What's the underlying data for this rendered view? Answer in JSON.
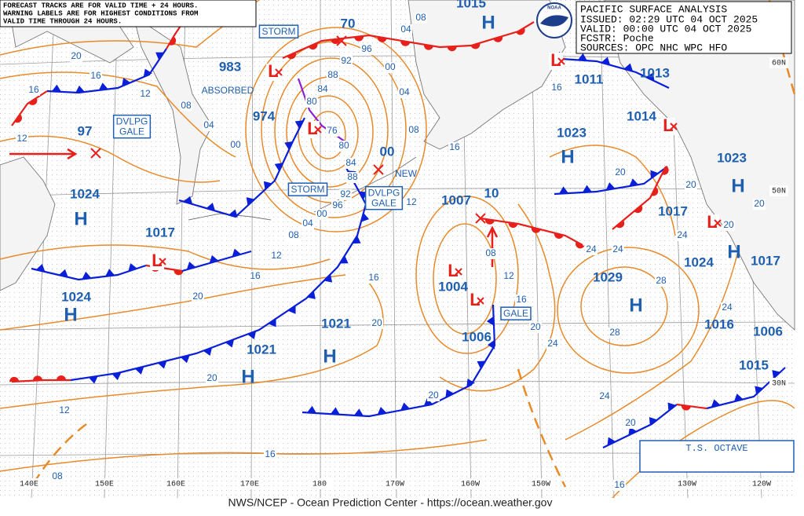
{
  "notice": [
    "FORECAST TRACKS ARE FOR VALID TIME + 24 HOURS.",
    "WARNING LABELS ARE FOR HIGHEST CONDITIONS FROM",
    "VALID TIME THROUGH 24 HOURS."
  ],
  "header": {
    "title": "PACIFIC SURFACE ANALYSIS",
    "issued": "ISSUED: 02:29 UTC 04 OCT 2025",
    "valid": "VALID:  00:00 UTC 04 OCT 2025",
    "forecaster": "FCSTR:  Poche",
    "sources": "SOURCES: OPC NHC WPC HFO",
    "logo": "NOAA"
  },
  "footer": "NWS/NCEP - Ocean Prediction Center - https://ocean.weather.gov",
  "longitude_labels": [
    "140E",
    "150E",
    "160E",
    "170E",
    "180",
    "170W",
    "160W",
    "150W",
    "130W",
    "120W"
  ],
  "latitude_labels": [
    "60N",
    "50N",
    "30N"
  ],
  "highs": [
    {
      "symbol": "H",
      "pressure": "1024"
    },
    {
      "symbol": "H",
      "pressure": "1024"
    },
    {
      "symbol": "H",
      "pressure": "1021"
    },
    {
      "symbol": "H",
      "pressure": "1021"
    },
    {
      "symbol": "H",
      "pressure": "1023"
    },
    {
      "symbol": "H",
      "pressure": "1029"
    },
    {
      "symbol": "H",
      "pressure": "1024"
    },
    {
      "symbol": "H",
      "pressure": "1023"
    },
    {
      "symbol": "H",
      "pressure": "1015"
    }
  ],
  "lows": [
    {
      "symbol": "L",
      "pressure": "983"
    },
    {
      "symbol": "L",
      "pressure": "974"
    },
    {
      "symbol": "L",
      "pressure": "1007"
    },
    {
      "symbol": "L",
      "pressure": "1004"
    },
    {
      "symbol": "L",
      "pressure": "1017"
    },
    {
      "symbol": "L",
      "pressure": "1011"
    },
    {
      "symbol": "L",
      "pressure": "1014"
    },
    {
      "symbol": "L",
      "pressure": "1017"
    }
  ],
  "pressure_labels": [
    "1006",
    "1013",
    "1017",
    "1016",
    "1015",
    "1006",
    "97",
    "70",
    "00",
    "10"
  ],
  "warnings": [
    {
      "lines": [
        "STORM"
      ]
    },
    {
      "lines": [
        "DVLPG",
        "GALE"
      ]
    },
    {
      "lines": [
        "STORM"
      ]
    },
    {
      "lines": [
        "DVLPG",
        "GALE"
      ]
    },
    {
      "lines": [
        "GALE"
      ]
    }
  ],
  "notes": [
    "ABSORBED",
    "NEW"
  ],
  "storm_name": "T.S. OCTAVE",
  "isobar_labels": [
    "20",
    "16",
    "16",
    "12",
    "08",
    "04",
    "00",
    "12",
    "08",
    "04",
    "00",
    "96",
    "92",
    "88",
    "84",
    "80",
    "76",
    "80",
    "84",
    "88",
    "92",
    "96",
    "00",
    "04",
    "08",
    "04",
    "08",
    "12",
    "16",
    "20",
    "16",
    "20",
    "12",
    "16",
    "20",
    "20",
    "12",
    "16",
    "08",
    "08",
    "12",
    "16",
    "20",
    "24",
    "20",
    "16",
    "24",
    "24",
    "28",
    "28",
    "24",
    "20",
    "24",
    "20",
    "16",
    "20",
    "24",
    "20"
  ]
}
